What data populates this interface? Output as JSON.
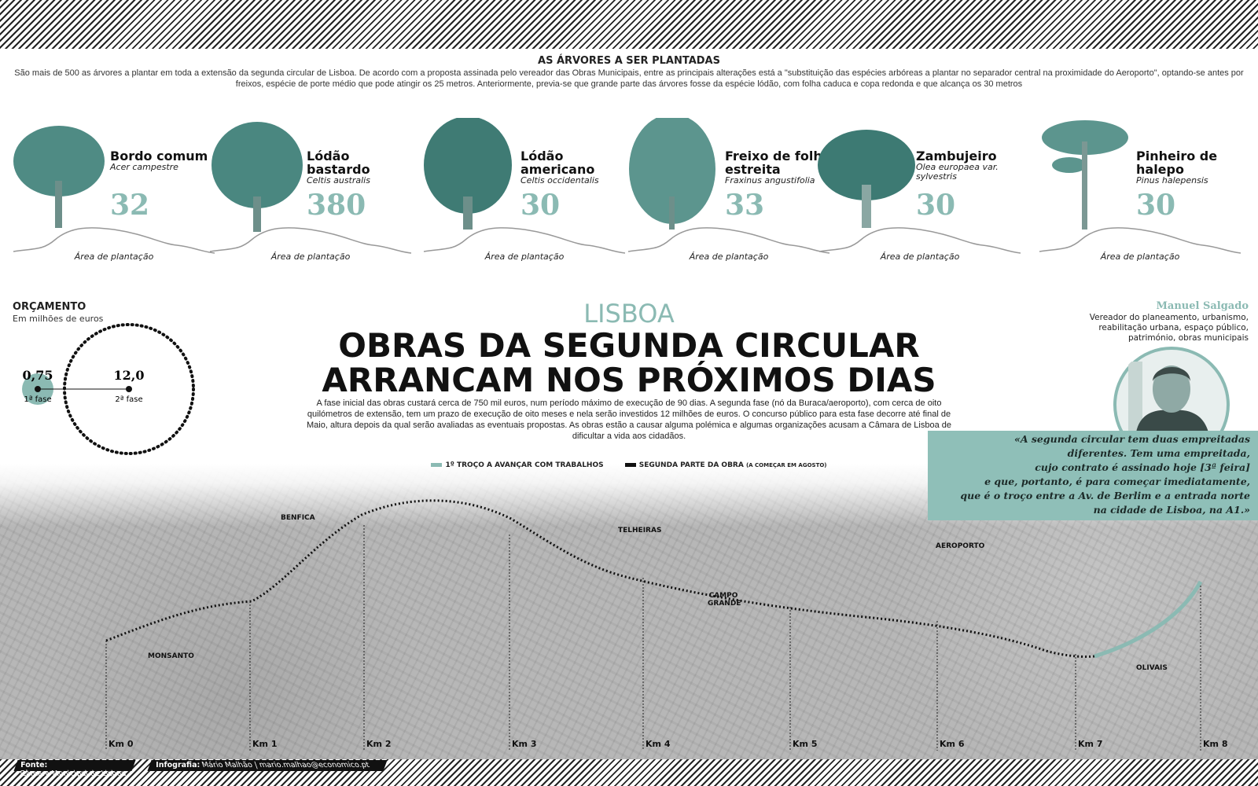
{
  "colors": {
    "accent": "#8bbab3",
    "quote_bg": "#8fbfb8",
    "route": "#111111"
  },
  "intro": {
    "title": "AS ÁRVORES A SER PLANTADAS",
    "text": "São mais de 500 as árvores a plantar em toda a extensão da segunda circular de Lisboa. De acordo com a proposta assinada pelo vereador das Obras Municipais, entre as principais alterações está a \"substituição das espécies arbóreas a plantar no separador central na proximidade do Aeroporto\", optando-se antes por freixos, espécie de porte médio que pode atingir os 25 metros. Anteriormente, previa-se que grande parte das árvores fosse da espécie lódão, com folha caduca e copa redonda e que alcança os 30 metros"
  },
  "trees": [
    {
      "name": "Bordo comum",
      "latin": "Acer campestre",
      "count": "32",
      "area": "Área de plantação"
    },
    {
      "name": "Lódão bastardo",
      "latin": "Celtis australis",
      "count": "380",
      "area": "Área de plantação"
    },
    {
      "name": "Lódão americano",
      "latin": "Celtis occidentalis",
      "count": "30",
      "area": "Área de plantação"
    },
    {
      "name": "Freixo de folha estreita",
      "latin": "Fraxinus angustifolia",
      "count": "33",
      "area": "Área de plantação"
    },
    {
      "name": "Zambujeiro",
      "latin": "Olea europaea var. sylvestris",
      "count": "30",
      "area": "Área de plantação"
    },
    {
      "name": "Pinheiro de halepo",
      "latin": "Pinus halepensis",
      "count": "30",
      "area": "Área de plantação"
    }
  ],
  "budget": {
    "title": "ORÇAMENTO",
    "subtitle": "Em milhões de euros",
    "phase1": {
      "value": "0,75",
      "label": "1ª fase"
    },
    "phase2": {
      "value": "12,0",
      "label": "2ª fase"
    }
  },
  "article": {
    "kicker": "LISBOA",
    "headline_1": "OBRAS DA SEGUNDA CIRCULAR",
    "headline_2": "ARRANCAM NOS PRÓXIMOS DIAS",
    "lead": "A fase inicial das obras custará cerca de 750 mil euros, num período máximo de execução de 90 dias. A segunda fase (nó da Buraca/aeroporto), com cerca de oito quilómetros de extensão, tem um prazo de execução de oito meses e nela serão investidos 12 milhões de euros. O concurso público para esta fase decorre até final de Maio, altura depois da qual serão avaliadas as eventuais propostas. As obras estão a causar alguma polémica e algumas organizações acusam a Câmara de Lisboa de dificultar a vida aos cidadãos."
  },
  "legend": {
    "first": "1º TROÇO A AVANÇAR COM TRABALHOS",
    "second": "SEGUNDA PARTE DA OBRA",
    "second_note": "(A COMEÇAR EM AGOSTO)"
  },
  "person": {
    "name": "Manuel Salgado",
    "role": "Vereador do planeamento, urbanismo, reabilitação urbana, espaço público, património, obras municipais",
    "quote_lines": [
      "«A segunda circular tem duas empreitadas",
      "diferentes. Tem uma empreitada,",
      "cujo contrato é assinado hoje [3ª feira]",
      "e que, portanto, é para começar imediatamente,",
      "que é o troço entre a Av. de Berlim e a entrada norte",
      "na cidade de Lisboa, na A1.»"
    ]
  },
  "map": {
    "places": [
      "BENFICA",
      "TELHEIRAS",
      "AEROPORTO",
      "MONSANTO",
      "CAMPO GRANDE",
      "OLIVAIS"
    ],
    "km": [
      "Km 0",
      "Km 1",
      "Km 2",
      "Km 3",
      "Km 4",
      "Km 5",
      "Km 6",
      "Km 7",
      "Km 8"
    ]
  },
  "footer": {
    "source_label": "Fonte:",
    "source": "Câmara Municipal de Lisboa",
    "credit_label": "Infografia:",
    "credit": "Mário Malhão | mario.malhao@economico.pt"
  }
}
